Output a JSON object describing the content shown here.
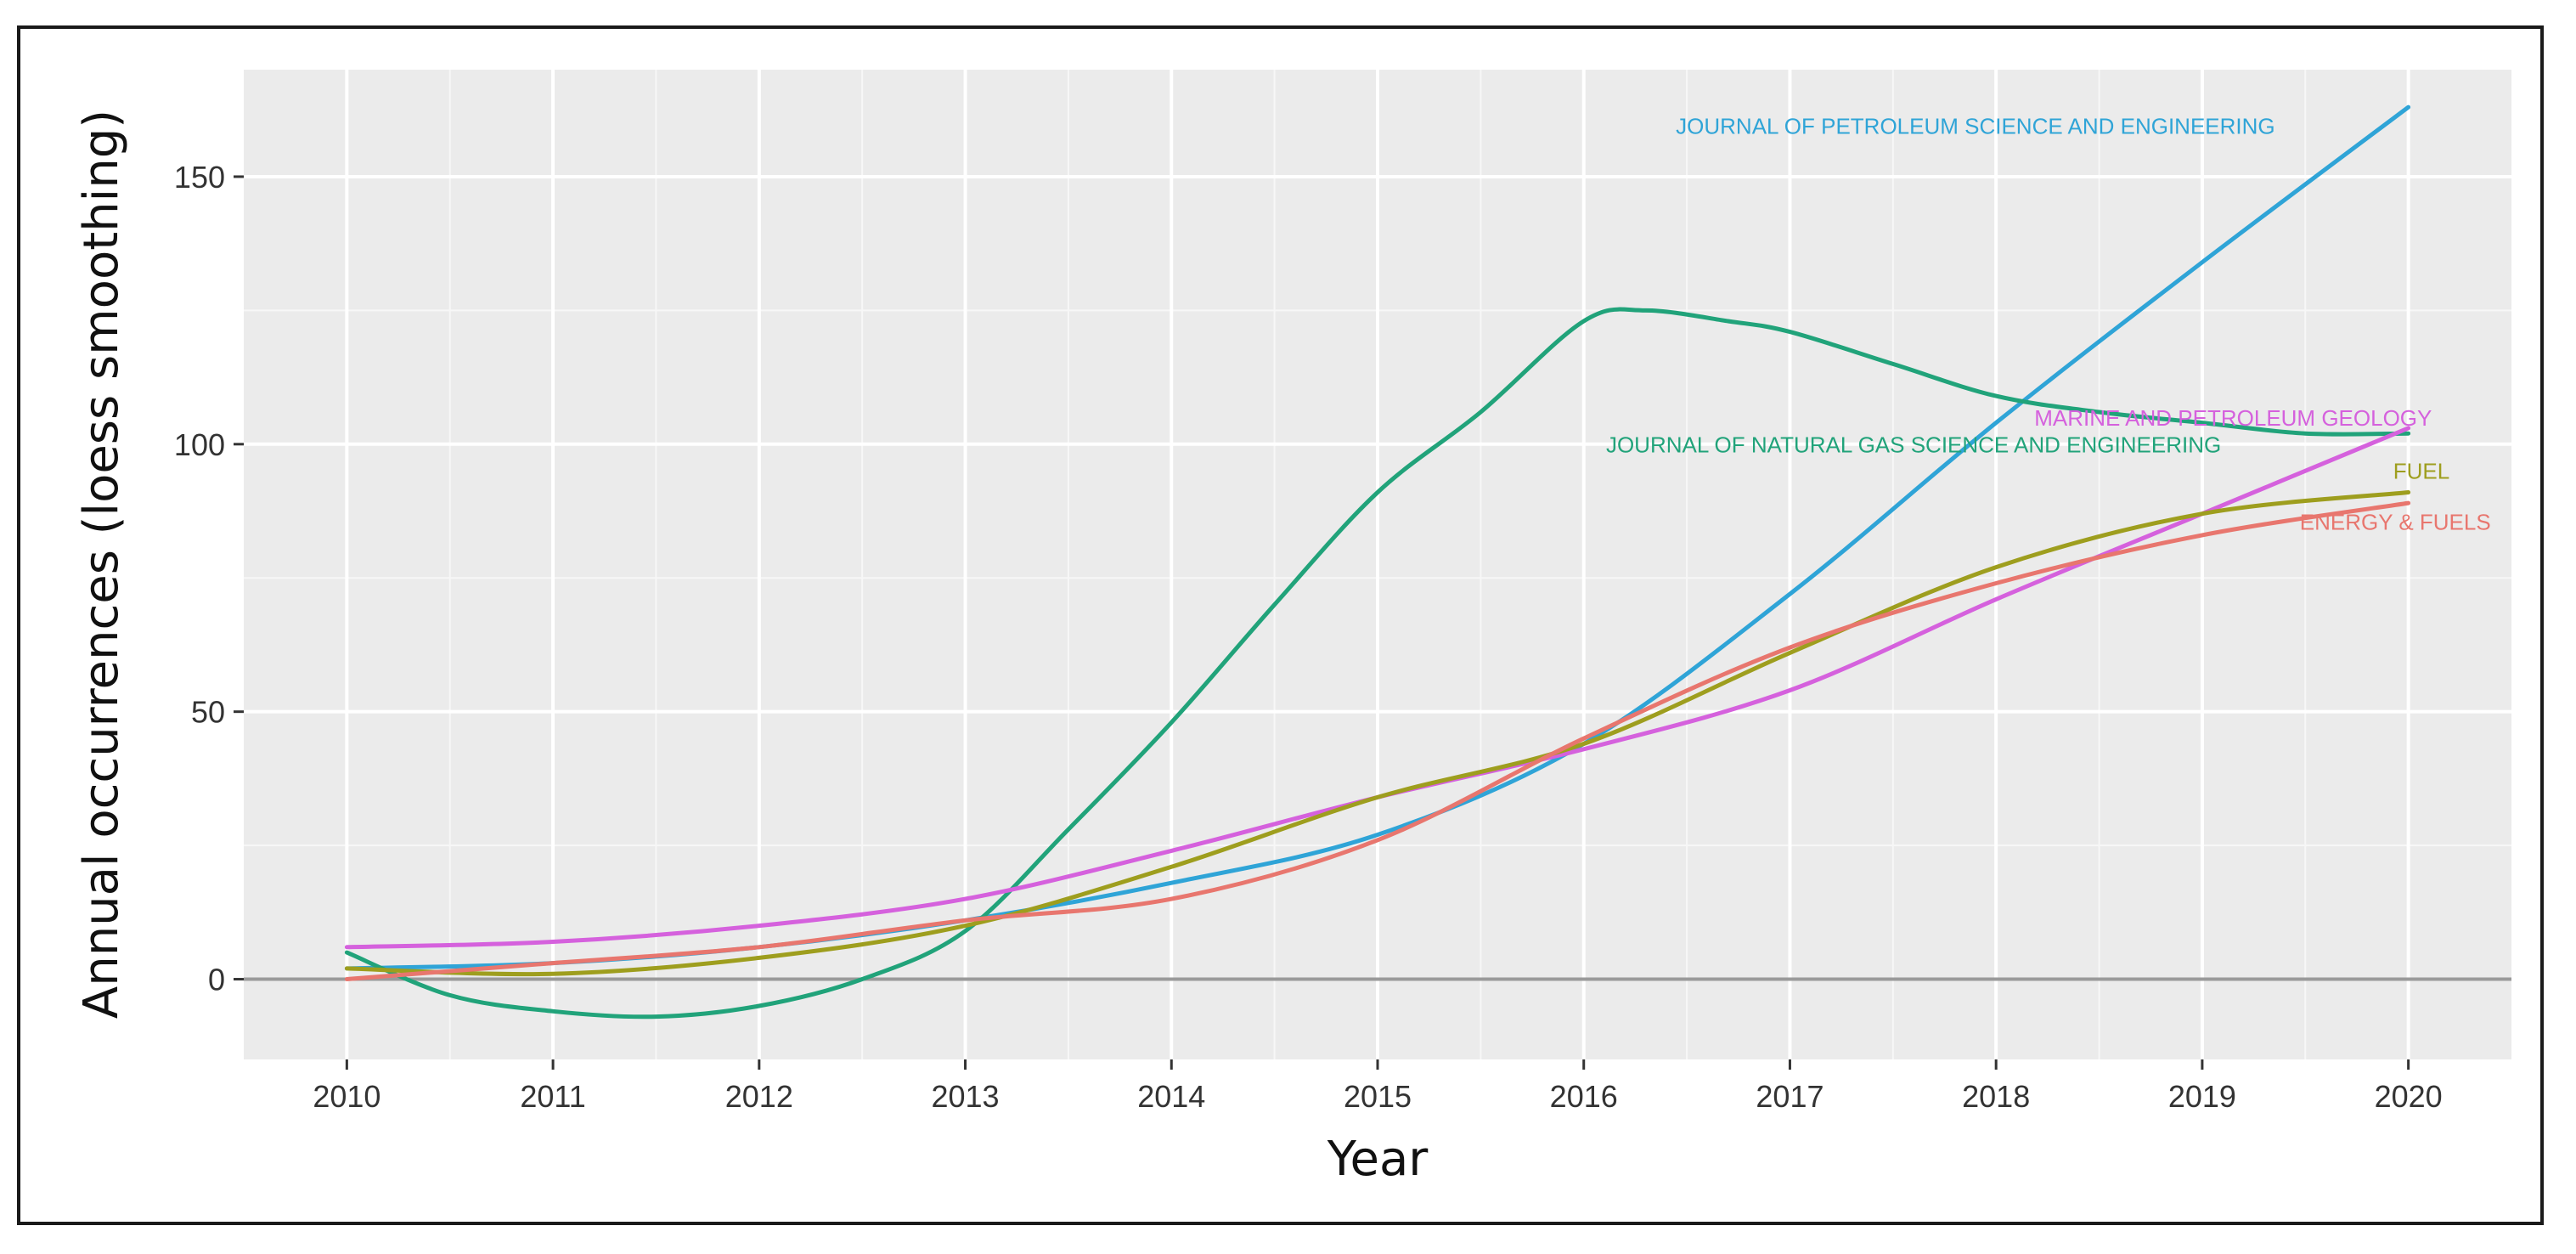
{
  "chart_data": {
    "type": "line",
    "title": "",
    "xlabel": "Year",
    "ylabel": "Annual occurrences (loess smoothing)",
    "xlim": [
      2009.5,
      2020.5
    ],
    "ylim": [
      -15,
      170
    ],
    "grid": true,
    "x_ticks": [
      2010,
      2011,
      2012,
      2013,
      2014,
      2015,
      2016,
      2017,
      2018,
      2019,
      2020
    ],
    "y_ticks": [
      0,
      50,
      100,
      150
    ],
    "x_tick_labels": [
      "2010",
      "2011",
      "2012",
      "2013",
      "2014",
      "2015",
      "2016",
      "2017",
      "2018",
      "2019",
      "2020"
    ],
    "y_tick_labels": [
      "0",
      "50",
      "100",
      "150"
    ],
    "series": [
      {
        "name": "JOURNAL OF PETROLEUM SCIENCE AND ENGINEERING",
        "color": "#2FA4D7",
        "x": [
          2010,
          2011,
          2012,
          2013,
          2014,
          2015,
          2016,
          2017,
          2018,
          2019,
          2020
        ],
        "values": [
          2,
          3,
          6,
          11,
          18,
          27,
          44,
          72,
          104,
          134,
          163
        ]
      },
      {
        "name": "JOURNAL OF NATURAL GAS SCIENCE AND ENGINEERING",
        "color": "#21A37A",
        "x": [
          2010,
          2010.5,
          2011,
          2011.5,
          2012,
          2012.5,
          2013,
          2013.5,
          2014,
          2014.5,
          2015,
          2015.5,
          2016,
          2016.3,
          2016.7,
          2017,
          2017.5,
          2018,
          2018.5,
          2019,
          2019.5,
          2020
        ],
        "values": [
          5,
          -3,
          -6,
          -7,
          -5,
          0,
          9,
          28,
          48,
          70,
          91,
          106,
          123,
          125,
          123,
          121,
          115,
          109,
          106,
          104,
          102,
          102
        ]
      },
      {
        "name": "MARINE AND PETROLEUM GEOLOGY",
        "color": "#D561DD",
        "x": [
          2010,
          2011,
          2012,
          2013,
          2014,
          2015,
          2016,
          2017,
          2018,
          2019,
          2020
        ],
        "values": [
          6,
          7,
          10,
          15,
          24,
          34,
          43,
          54,
          71,
          87,
          103
        ]
      },
      {
        "name": "FUEL",
        "color": "#9E9E1E",
        "x": [
          2010,
          2011,
          2012,
          2013,
          2014,
          2015,
          2016,
          2017,
          2018,
          2019,
          2020
        ],
        "values": [
          2,
          1,
          4,
          10,
          21,
          34,
          44,
          61,
          77,
          87,
          91
        ]
      },
      {
        "name": "ENERGY & FUELS",
        "color": "#E8766E",
        "x": [
          2010,
          2011,
          2012,
          2013,
          2014,
          2015,
          2016,
          2017,
          2018,
          2019,
          2020
        ],
        "values": [
          0,
          3,
          6,
          11,
          15,
          26,
          45,
          62,
          74,
          83,
          89
        ]
      }
    ]
  }
}
